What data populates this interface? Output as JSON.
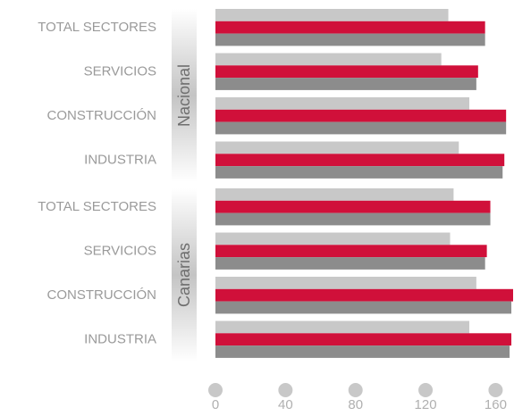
{
  "chart_data": {
    "type": "hbar",
    "categories": [
      "TOTAL SECTORES",
      "SERVICIOS",
      "CONSTRUCCIÓN",
      "INDUSTRIA",
      "TOTAL SECTORES",
      "SERVICIOS",
      "CONSTRUCCIÓN",
      "INDUSTRIA"
    ],
    "groups": [
      "Nacional",
      "Canarias"
    ],
    "series": [
      {
        "color": "#c8c8c8",
        "values": [
          133,
          129,
          145,
          139,
          136,
          134,
          149,
          145
        ]
      },
      {
        "color": "#d0103a",
        "values": [
          154,
          150,
          166,
          165,
          157,
          155,
          170,
          169
        ]
      },
      {
        "color": "#8c8c8c",
        "values": [
          154,
          149,
          166,
          164,
          157,
          154,
          169,
          168
        ]
      }
    ],
    "xlim": [
      0,
      170
    ],
    "xticks": [
      0,
      40,
      80,
      120,
      160
    ]
  }
}
